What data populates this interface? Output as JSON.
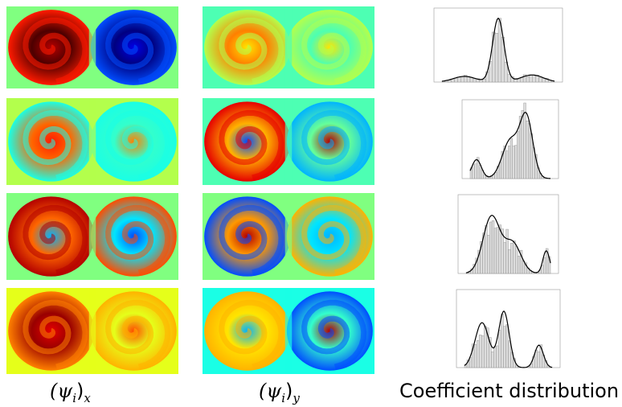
{
  "captions": [
    {
      "prefix": "(ψ",
      "sub": "i",
      "suffix": ")",
      "outer_sub": "x"
    },
    {
      "prefix": "(ψ",
      "sub": "i",
      "suffix": ")",
      "outer_sub": "y"
    },
    {
      "text": "Coefficient distribution"
    }
  ]
}
